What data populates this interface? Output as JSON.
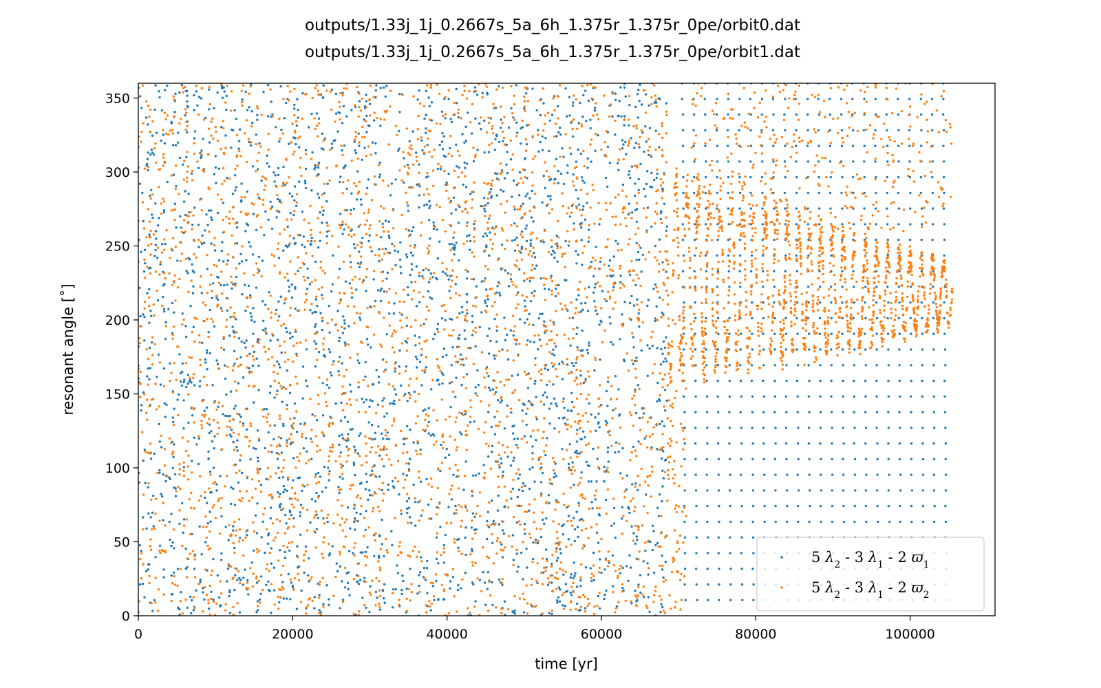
{
  "chart_data": {
    "type": "scatter",
    "title_lines": [
      "outputs/1.33j_1j_0.2667s_5a_6h_1.375r_1.375r_0pe/orbit0.dat",
      "outputs/1.33j_1j_0.2667s_5a_6h_1.375r_1.375r_0pe/orbit1.dat"
    ],
    "xlabel": "time [yr]",
    "ylabel": "resonant angle [˚]",
    "xlim": [
      0,
      111000
    ],
    "ylim": [
      0,
      360
    ],
    "xticks": [
      0,
      20000,
      40000,
      60000,
      80000,
      100000
    ],
    "xtick_labels": [
      "0",
      "20000",
      "40000",
      "60000",
      "80000",
      "100000"
    ],
    "yticks": [
      0,
      50,
      100,
      150,
      200,
      250,
      300,
      350
    ],
    "ytick_labels": [
      "0",
      "50",
      "100",
      "150",
      "200",
      "250",
      "300",
      "350"
    ],
    "grid": false,
    "legend_position": "bottom-right",
    "transition_time": 68500,
    "end_time": 105500,
    "series": [
      {
        "name": "5 λ2 - 3 λ1 - 2 ϖ1",
        "color": "#1f77b4",
        "behavior": "circulating over 0–360 for full span; steep near-vertical streaks after ~70000 yr",
        "legend": {
          "pre": "5 ",
          "s1": "λ",
          "sub1": "2",
          "mid1": " - 3 ",
          "s2": "λ",
          "sub2": "1",
          "mid2": " - 2 ",
          "s3": "ϖ",
          "sub3": "1"
        }
      },
      {
        "name": "5 λ2 - 3 λ1 - 2 ϖ2",
        "color": "#ff7f0e",
        "behavior": "circulating over 0–360 until ~68500 yr, then librating about ~220 (amplitude ~50 decaying to ~25)",
        "legend": {
          "pre": "5 ",
          "s1": "λ",
          "sub1": "2",
          "mid1": " - 3 ",
          "s2": "λ",
          "sub2": "1",
          "mid2": " - 2 ",
          "s3": "ϖ",
          "sub3": "2"
        }
      }
    ]
  }
}
